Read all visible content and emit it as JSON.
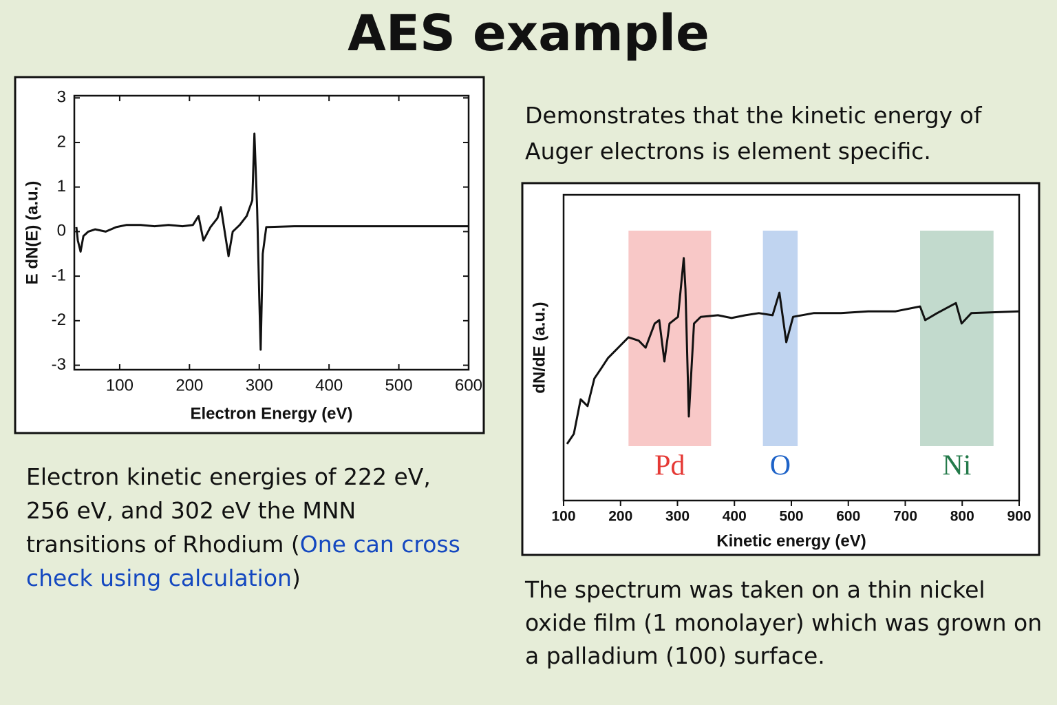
{
  "title": "AES example",
  "text_top_right": "Demonstrates that the kinetic energy of Auger electrons is element specific.",
  "text_left": [
    "Electron kinetic energies of 222 eV, 256 eV, and 302 eV the MNN transitions of Rhodium (",
    "One can cross check using calculation",
    ")"
  ],
  "text_bottom_right": "The spectrum was taken on a thin nickel oxide film (1 monolayer) which was grown on a palladium (100) surface.",
  "chart_data": [
    {
      "type": "line",
      "xlabel": "Electron Energy (eV)",
      "ylabel": "E dN(E) (a.u.)",
      "color": "#111111",
      "x": [
        38,
        40,
        44,
        48,
        55,
        65,
        80,
        95,
        110,
        130,
        150,
        170,
        190,
        205,
        213,
        220,
        230,
        240,
        245,
        250,
        256,
        262,
        272,
        282,
        290,
        293,
        297,
        300,
        302,
        305,
        310,
        350,
        400,
        450,
        500,
        550,
        600
      ],
      "values": [
        0.1,
        -0.2,
        -0.45,
        -0.1,
        0.0,
        0.05,
        0.0,
        0.1,
        0.15,
        0.15,
        0.12,
        0.15,
        0.12,
        0.15,
        0.35,
        -0.2,
        0.1,
        0.3,
        0.55,
        0.05,
        -0.55,
        0.0,
        0.15,
        0.35,
        0.7,
        2.2,
        0.5,
        -1.5,
        -2.65,
        -0.5,
        0.1,
        0.12,
        0.12,
        0.12,
        0.12,
        0.12,
        0.12
      ],
      "xlim": [
        35,
        600
      ],
      "ylim": [
        -3.1,
        3.05
      ],
      "xticks": [
        100,
        200,
        300,
        400,
        500,
        600
      ],
      "yticks": [
        -3,
        -2,
        -1,
        0,
        1,
        2,
        3
      ]
    },
    {
      "type": "line",
      "xlabel": "Kinetic energy (eV)",
      "ylabel": "dN/dE (a.u.)",
      "color": "#111111",
      "x": [
        106,
        118,
        130,
        142,
        154,
        166,
        178,
        196,
        214,
        232,
        244,
        260,
        268,
        277,
        286,
        301,
        311,
        314,
        320,
        329,
        341,
        371,
        395,
        419,
        443,
        467,
        479,
        491,
        503,
        539,
        587,
        635,
        683,
        726,
        735,
        756,
        789,
        799,
        816,
        900
      ],
      "values": [
        1.85,
        2.18,
        3.31,
        3.09,
        3.99,
        4.32,
        4.66,
        5.0,
        5.34,
        5.23,
        5.0,
        5.79,
        5.9,
        4.55,
        5.79,
        6.01,
        7.93,
        6.91,
        2.75,
        5.79,
        6.01,
        6.06,
        5.97,
        6.06,
        6.13,
        6.06,
        6.8,
        5.18,
        6.01,
        6.13,
        6.13,
        6.19,
        6.19,
        6.35,
        5.9,
        6.13,
        6.46,
        5.79,
        6.13,
        6.19
      ],
      "xlim": [
        100,
        900
      ],
      "ylim": [
        0,
        10
      ],
      "xticks": [
        100,
        200,
        300,
        400,
        500,
        600,
        700,
        800,
        900
      ],
      "regions": [
        {
          "label": "Pd",
          "from": 214,
          "to": 359,
          "color": "#e53935"
        },
        {
          "label": "O",
          "from": 450,
          "to": 511,
          "color": "#1e63c8"
        },
        {
          "label": "Ni",
          "from": 726,
          "to": 855,
          "color": "#237a4a"
        }
      ]
    }
  ]
}
